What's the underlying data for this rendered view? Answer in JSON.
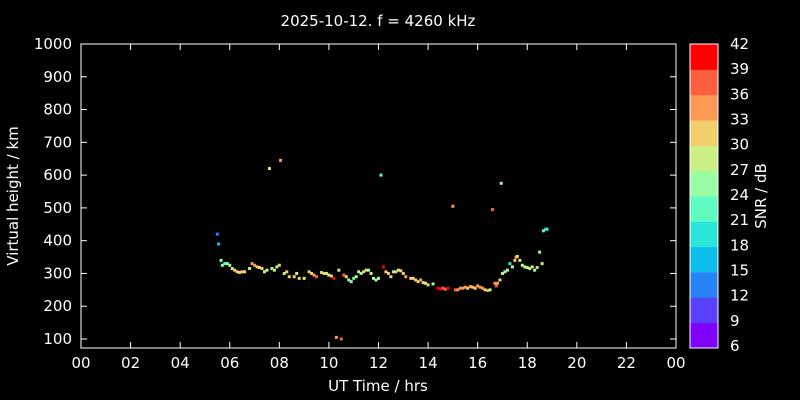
{
  "chart_data": {
    "type": "scatter",
    "title": "2025-10-12. f = 4260 kHz",
    "xlabel": "UT Time / hrs",
    "ylabel": "Virtual height / km",
    "xlim": [
      0,
      24
    ],
    "ylim": [
      80,
      1000
    ],
    "xticks": [
      "00",
      "02",
      "04",
      "06",
      "08",
      "10",
      "12",
      "14",
      "16",
      "18",
      "20",
      "22",
      "00"
    ],
    "yticks": [
      100,
      200,
      300,
      400,
      500,
      600,
      700,
      800,
      900,
      1000
    ],
    "grid": false,
    "colorbar": {
      "label": "SNR / dB",
      "range": [
        6,
        42
      ],
      "ticks": [
        6,
        9,
        12,
        15,
        18,
        21,
        24,
        27,
        30,
        33,
        36,
        39,
        42
      ],
      "colors": [
        "#8000ff",
        "#5a41fc",
        "#2883f7",
        "#0dbdec",
        "#2ae5d8",
        "#5efac2",
        "#99fda3",
        "#ccef85",
        "#f3cf6b",
        "#ff9a55",
        "#ff5d3f",
        "#ff0000"
      ]
    },
    "points": [
      [
        5.5,
        420,
        12
      ],
      [
        5.55,
        390,
        15
      ],
      [
        5.65,
        340,
        24
      ],
      [
        5.7,
        325,
        24
      ],
      [
        5.8,
        330,
        21
      ],
      [
        5.9,
        330,
        24
      ],
      [
        6.0,
        325,
        24
      ],
      [
        6.1,
        315,
        27
      ],
      [
        6.2,
        310,
        30
      ],
      [
        6.3,
        305,
        30
      ],
      [
        6.4,
        303,
        30
      ],
      [
        6.5,
        305,
        30
      ],
      [
        6.6,
        305,
        30
      ],
      [
        6.8,
        315,
        27
      ],
      [
        6.9,
        330,
        33
      ],
      [
        7.0,
        325,
        33
      ],
      [
        7.1,
        320,
        30
      ],
      [
        7.2,
        318,
        30
      ],
      [
        7.3,
        315,
        30
      ],
      [
        7.4,
        305,
        27
      ],
      [
        7.5,
        310,
        27
      ],
      [
        7.6,
        620,
        27
      ],
      [
        7.7,
        315,
        24
      ],
      [
        7.8,
        310,
        27
      ],
      [
        7.9,
        320,
        27
      ],
      [
        8.0,
        325,
        30
      ],
      [
        8.05,
        645,
        33
      ],
      [
        8.2,
        300,
        27
      ],
      [
        8.3,
        305,
        30
      ],
      [
        8.4,
        290,
        30
      ],
      [
        8.6,
        290,
        30
      ],
      [
        8.7,
        300,
        27
      ],
      [
        8.8,
        285,
        30
      ],
      [
        9.0,
        285,
        27
      ],
      [
        9.2,
        305,
        30
      ],
      [
        9.3,
        300,
        30
      ],
      [
        9.4,
        295,
        33
      ],
      [
        9.5,
        290,
        36
      ],
      [
        9.7,
        303,
        30
      ],
      [
        9.8,
        300,
        30
      ],
      [
        9.9,
        300,
        27
      ],
      [
        10.0,
        295,
        27
      ],
      [
        10.1,
        292,
        30
      ],
      [
        10.2,
        285,
        39
      ],
      [
        10.3,
        105,
        33
      ],
      [
        10.4,
        310,
        27
      ],
      [
        10.5,
        100,
        36
      ],
      [
        10.6,
        295,
        36
      ],
      [
        10.7,
        290,
        30
      ],
      [
        10.8,
        280,
        24
      ],
      [
        10.9,
        275,
        24
      ],
      [
        11.0,
        285,
        21
      ],
      [
        11.1,
        290,
        27
      ],
      [
        11.2,
        305,
        27
      ],
      [
        11.3,
        300,
        24
      ],
      [
        11.4,
        305,
        30
      ],
      [
        11.5,
        310,
        27
      ],
      [
        11.6,
        310,
        24
      ],
      [
        11.7,
        300,
        27
      ],
      [
        11.8,
        285,
        27
      ],
      [
        11.9,
        280,
        24
      ],
      [
        12.0,
        285,
        24
      ],
      [
        12.1,
        600,
        21
      ],
      [
        12.2,
        320,
        39
      ],
      [
        12.3,
        305,
        30
      ],
      [
        12.4,
        300,
        30
      ],
      [
        12.5,
        290,
        30
      ],
      [
        12.6,
        305,
        24
      ],
      [
        12.7,
        305,
        30
      ],
      [
        12.8,
        310,
        27
      ],
      [
        12.9,
        308,
        30
      ],
      [
        13.0,
        300,
        30
      ],
      [
        13.1,
        290,
        33
      ],
      [
        13.3,
        285,
        30
      ],
      [
        13.4,
        285,
        30
      ],
      [
        13.5,
        280,
        30
      ],
      [
        13.6,
        275,
        30
      ],
      [
        13.7,
        280,
        33
      ],
      [
        13.8,
        272,
        30
      ],
      [
        13.9,
        270,
        27
      ],
      [
        14.0,
        265,
        30
      ],
      [
        14.2,
        268,
        27
      ],
      [
        14.4,
        255,
        39
      ],
      [
        14.5,
        253,
        39
      ],
      [
        14.6,
        255,
        36
      ],
      [
        14.7,
        252,
        36
      ],
      [
        14.8,
        255,
        39
      ],
      [
        15.0,
        505,
        33
      ],
      [
        15.1,
        250,
        36
      ],
      [
        15.2,
        250,
        33
      ],
      [
        15.3,
        255,
        33
      ],
      [
        15.4,
        255,
        33
      ],
      [
        15.5,
        258,
        33
      ],
      [
        15.6,
        255,
        30
      ],
      [
        15.7,
        260,
        33
      ],
      [
        15.8,
        258,
        30
      ],
      [
        15.9,
        255,
        30
      ],
      [
        16.0,
        262,
        33
      ],
      [
        16.1,
        258,
        33
      ],
      [
        16.2,
        255,
        33
      ],
      [
        16.3,
        250,
        30
      ],
      [
        16.4,
        248,
        33
      ],
      [
        16.5,
        250,
        24
      ],
      [
        16.6,
        495,
        36
      ],
      [
        16.7,
        270,
        33
      ],
      [
        16.75,
        262,
        36
      ],
      [
        16.8,
        270,
        33
      ],
      [
        16.9,
        280,
        30
      ],
      [
        16.95,
        575,
        24
      ],
      [
        17.0,
        300,
        27
      ],
      [
        17.1,
        305,
        24
      ],
      [
        17.2,
        310,
        27
      ],
      [
        17.3,
        330,
        18
      ],
      [
        17.4,
        320,
        27
      ],
      [
        17.5,
        340,
        30
      ],
      [
        17.55,
        350,
        33
      ],
      [
        17.6,
        352,
        30
      ],
      [
        17.7,
        340,
        27
      ],
      [
        17.8,
        325,
        27
      ],
      [
        17.9,
        320,
        24
      ],
      [
        18.0,
        318,
        27
      ],
      [
        18.1,
        315,
        24
      ],
      [
        18.2,
        320,
        27
      ],
      [
        18.3,
        310,
        24
      ],
      [
        18.4,
        318,
        30
      ],
      [
        18.5,
        365,
        24
      ],
      [
        18.6,
        330,
        27
      ],
      [
        18.65,
        430,
        21
      ],
      [
        18.75,
        435,
        21
      ],
      [
        18.8,
        435,
        18
      ]
    ]
  }
}
